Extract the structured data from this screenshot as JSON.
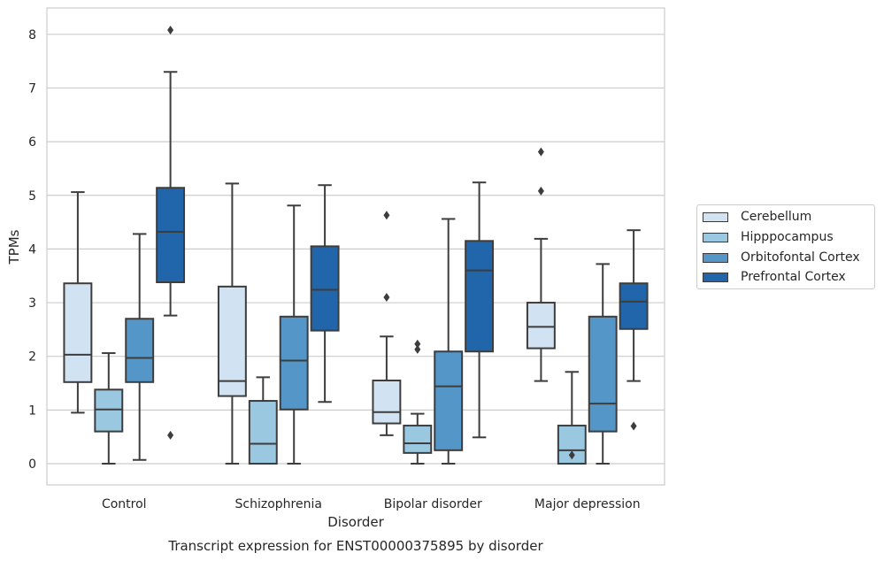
{
  "chart_data": {
    "type": "box",
    "title": "Transcript expression for ENST00000375895 by disorder",
    "xlabel": "Disorder",
    "ylabel": "TPMs",
    "ylim": [
      -0.4,
      8.5
    ],
    "yticks": [
      0,
      1,
      2,
      3,
      4,
      5,
      6,
      7,
      8
    ],
    "grid": "horizontal",
    "legend_position": "right",
    "categories": [
      "Control",
      "Schizophrenia",
      "Bipolar disorder",
      "Major depression"
    ],
    "series": [
      {
        "name": "Cerebellum",
        "color": "#d1e2f2",
        "boxes": [
          {
            "whislo": 0.95,
            "q1": 1.52,
            "med": 2.03,
            "q3": 3.36,
            "whishi": 5.06,
            "fliers": []
          },
          {
            "whislo": 0.0,
            "q1": 1.26,
            "med": 1.54,
            "q3": 3.3,
            "whishi": 5.22,
            "fliers": []
          },
          {
            "whislo": 0.53,
            "q1": 0.75,
            "med": 0.96,
            "q3": 1.55,
            "whishi": 2.37,
            "fliers": [
              3.1,
              4.63
            ]
          },
          {
            "whislo": 1.54,
            "q1": 2.15,
            "med": 2.55,
            "q3": 3.0,
            "whishi": 4.19,
            "fliers": [
              5.08,
              5.81
            ]
          }
        ]
      },
      {
        "name": "Hipppocampus",
        "color": "#9ac8e0",
        "boxes": [
          {
            "whislo": 0.0,
            "q1": 0.6,
            "med": 1.01,
            "q3": 1.38,
            "whishi": 2.06,
            "fliers": []
          },
          {
            "whislo": 0.0,
            "q1": 0.0,
            "med": 0.37,
            "q3": 1.17,
            "whishi": 1.61,
            "fliers": []
          },
          {
            "whislo": 0.0,
            "q1": 0.2,
            "med": 0.38,
            "q3": 0.71,
            "whishi": 0.93,
            "fliers": [
              2.13,
              2.23
            ]
          },
          {
            "whislo": 0.0,
            "q1": 0.0,
            "med": 0.25,
            "q3": 0.71,
            "whishi": 1.71,
            "fliers": [
              0.16
            ]
          }
        ]
      },
      {
        "name": "Orbitofontal Cortex",
        "color": "#5496c8",
        "boxes": [
          {
            "whislo": 0.07,
            "q1": 1.52,
            "med": 1.97,
            "q3": 2.7,
            "whishi": 4.28,
            "fliers": []
          },
          {
            "whislo": 0.0,
            "q1": 1.01,
            "med": 1.92,
            "q3": 2.74,
            "whishi": 4.81,
            "fliers": []
          },
          {
            "whislo": 0.0,
            "q1": 0.25,
            "med": 1.44,
            "q3": 2.09,
            "whishi": 4.56,
            "fliers": []
          },
          {
            "whislo": 0.0,
            "q1": 0.6,
            "med": 1.12,
            "q3": 2.74,
            "whishi": 3.72,
            "fliers": []
          }
        ]
      },
      {
        "name": "Prefrontal Cortex",
        "color": "#2166ab",
        "boxes": [
          {
            "whislo": 2.76,
            "q1": 3.38,
            "med": 4.32,
            "q3": 5.14,
            "whishi": 7.3,
            "fliers": [
              0.53,
              8.08
            ]
          },
          {
            "whislo": 1.15,
            "q1": 2.48,
            "med": 3.24,
            "q3": 4.05,
            "whishi": 5.19,
            "fliers": []
          },
          {
            "whislo": 0.49,
            "q1": 2.09,
            "med": 3.6,
            "q3": 4.15,
            "whishi": 5.24,
            "fliers": []
          },
          {
            "whislo": 1.54,
            "q1": 2.51,
            "med": 3.02,
            "q3": 3.36,
            "whishi": 4.35,
            "fliers": [
              0.7
            ]
          }
        ]
      }
    ]
  }
}
